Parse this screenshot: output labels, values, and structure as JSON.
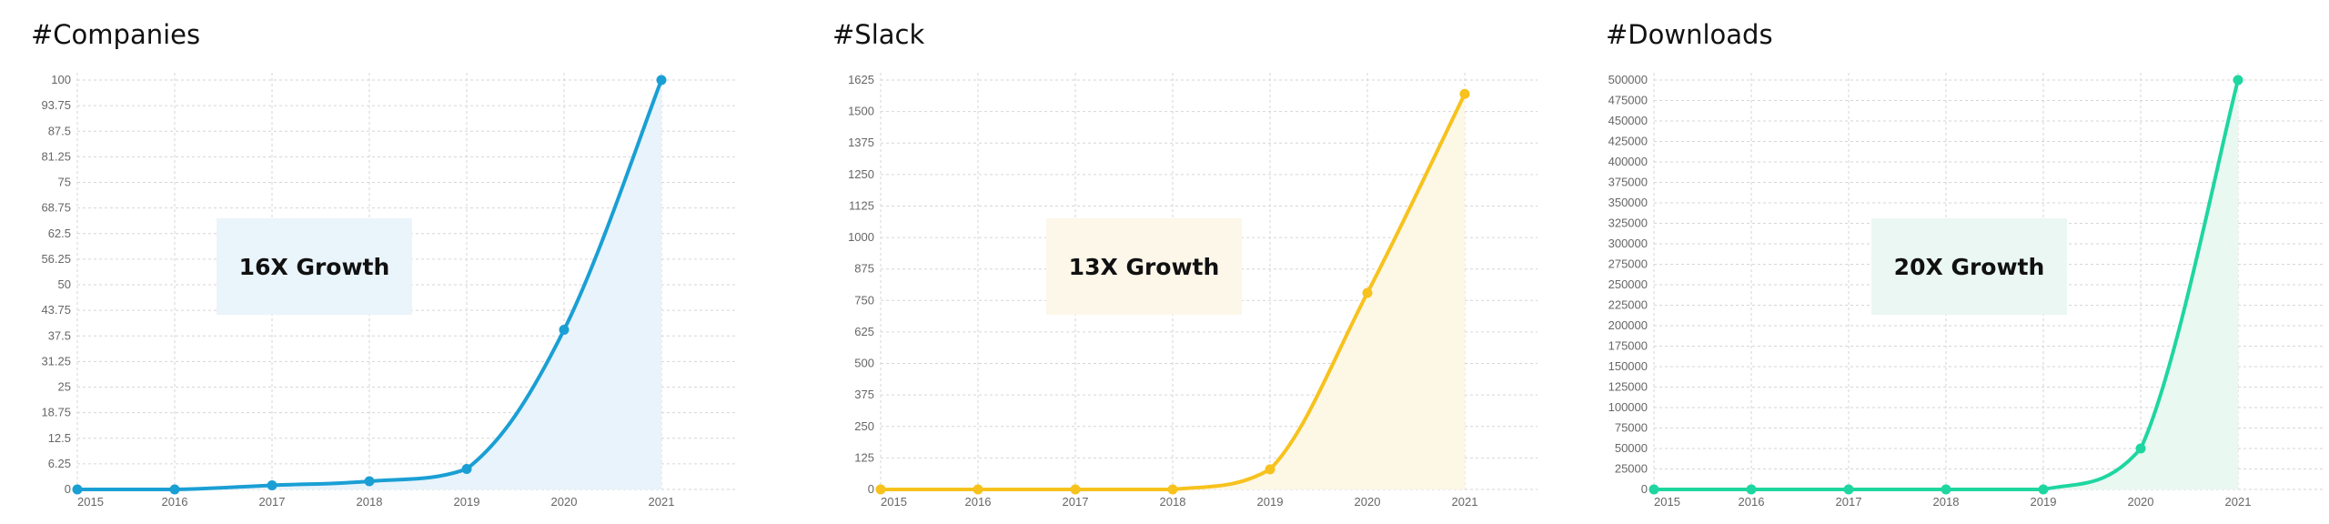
{
  "chart_data": [
    {
      "type": "line",
      "title": "#Companies",
      "annotation": "16X Growth",
      "x": [
        "2015",
        "2016",
        "2017",
        "2018",
        "2019",
        "2020",
        "2021"
      ],
      "series": [
        {
          "values": [
            0,
            0,
            1,
            2,
            5,
            39,
            100
          ]
        }
      ],
      "ylim": [
        0,
        100
      ],
      "yticks": [
        "0",
        "6.25",
        "12.5",
        "18.75",
        "25",
        "31.25",
        "37.5",
        "43.75",
        "50",
        "56.25",
        "62.5",
        "68.75",
        "75",
        "81.25",
        "87.5",
        "93.75",
        "100"
      ],
      "grid": true,
      "colors": {
        "line": "#1a9fd4",
        "fill": "#e8f3fb",
        "callout": "#eaf4fb"
      }
    },
    {
      "type": "line",
      "title": "#Slack",
      "annotation": "13X Growth",
      "x": [
        "2015",
        "2016",
        "2017",
        "2018",
        "2019",
        "2020",
        "2021"
      ],
      "series": [
        {
          "values": [
            0,
            0,
            0,
            0,
            80,
            780,
            1570
          ]
        }
      ],
      "ylim": [
        0,
        1625
      ],
      "yticks": [
        "0",
        "125",
        "250",
        "375",
        "500",
        "625",
        "750",
        "875",
        "1000",
        "1125",
        "1250",
        "1375",
        "1500",
        "1625"
      ],
      "grid": true,
      "colors": {
        "line": "#f7c21d",
        "fill": "#fdf7e6",
        "callout": "#fdf7ea"
      }
    },
    {
      "type": "line",
      "title": "#Downloads",
      "annotation": "20X Growth",
      "x": [
        "2015",
        "2016",
        "2017",
        "2018",
        "2019",
        "2020",
        "2021"
      ],
      "series": [
        {
          "values": [
            0,
            0,
            0,
            0,
            0,
            50000,
            500000
          ]
        }
      ],
      "ylim": [
        0,
        500000
      ],
      "yticks": [
        "0",
        "25000",
        "50000",
        "75000",
        "100000",
        "125000",
        "150000",
        "175000",
        "200000",
        "225000",
        "250000",
        "275000",
        "300000",
        "325000",
        "350000",
        "375000",
        "400000",
        "425000",
        "450000",
        "475000",
        "500000"
      ],
      "grid": true,
      "colors": {
        "line": "#1fd6a0",
        "fill": "#e9f8f1",
        "callout": "#eaf7f2"
      }
    }
  ]
}
